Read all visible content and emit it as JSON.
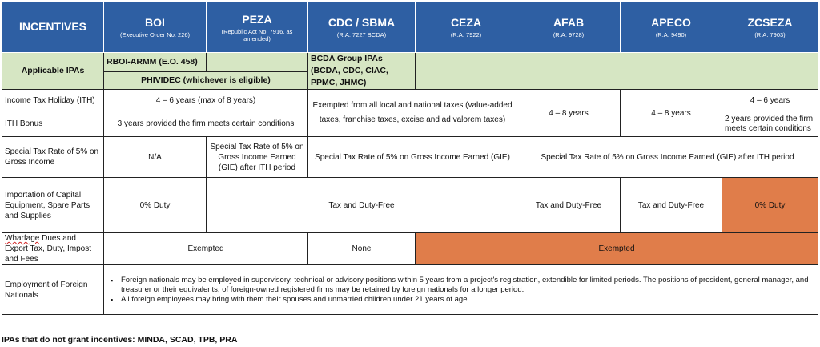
{
  "header": {
    "first": "INCENTIVES",
    "columns": [
      {
        "name": "BOI",
        "sub": "(Executive Order No. 226)"
      },
      {
        "name": "PEZA",
        "sub": "(Republic Act No. 7916, as amended)"
      },
      {
        "name": "CDC / SBMA",
        "sub": "(R.A. 7227 BCDA)"
      },
      {
        "name": "CEZA",
        "sub": "(R.A. 7922)"
      },
      {
        "name": "AFAB",
        "sub": "(R.A. 9728)"
      },
      {
        "name": "APECO",
        "sub": "(R.A. 9490)"
      },
      {
        "name": "ZCSEZA",
        "sub": "(R.A. 7903)"
      }
    ]
  },
  "rows": {
    "ipas": {
      "label": "Applicable IPAs",
      "boi_top": "RBOI-ARMM (E.O. 458)",
      "boi_peza": "PHIVIDEC (whichever is eligible)",
      "cdc": "BCDA Group IPAs (BCDA, CDC, CIAC, PPMC, JHMC)"
    },
    "ith": {
      "label": "Income Tax Holiday (ITH)",
      "boi_peza": "4 – 6 years (max of 8 years)",
      "cdc_ceza": "Exempted from all local and national taxes (value-added taxes, franchise taxes, excise and ad valorem taxes)",
      "afab": "4 – 8 years",
      "apeco": "4 – 8 years",
      "zcseza": "4 – 6 years"
    },
    "ith_bonus": {
      "label": "ITH Bonus",
      "boi_peza": "3 years provided the firm meets certain conditions",
      "zcseza": "2 years provided the firm meets certain conditions"
    },
    "special_tax": {
      "label": "Special Tax Rate of 5% on Gross Income",
      "boi": "N/A",
      "peza": "Special Tax Rate of 5% on Gross Income Earned (GIE) after ITH period",
      "cdc_ceza": "Special Tax Rate of 5% on Gross Income Earned (GIE)",
      "afab_zcseza": "Special Tax Rate of 5% on Gross Income Earned (GIE) after ITH period"
    },
    "import": {
      "label": "Importation of Capital Equipment, Spare Parts and Supplies",
      "boi": "0% Duty",
      "peza_ceza": "Tax and Duty-Free",
      "afab": "Tax and Duty-Free",
      "apeco": "Tax and Duty-Free",
      "zcseza": "0% Duty"
    },
    "wharfage": {
      "label_word": "Wharfage",
      "label_rest": " Dues and Export Tax, Duty, Impost and Fees",
      "boi_peza": "Exempted",
      "cdc": "None",
      "ceza_zcseza": "Exempted"
    },
    "employment": {
      "label": "Employment of Foreign Nationals",
      "bullets": [
        "Foreign nationals may be employed in supervisory, technical or advisory positions within 5 years from a project's registration, extendible for limited periods. The positions of president, general manager, and treasurer or their equivalents, of foreign-owned registered firms may be retained by foreign nationals for a longer period.",
        "All foreign employees may bring with them their spouses and unmarried children under 21 years of age."
      ]
    }
  },
  "footer_note": "IPAs that do not grant incentives: MINDA, SCAD, TPB, PRA",
  "colors": {
    "header_blue": "#2e5fa3",
    "green": "#d6e6c3",
    "orange": "#e07d4a"
  }
}
